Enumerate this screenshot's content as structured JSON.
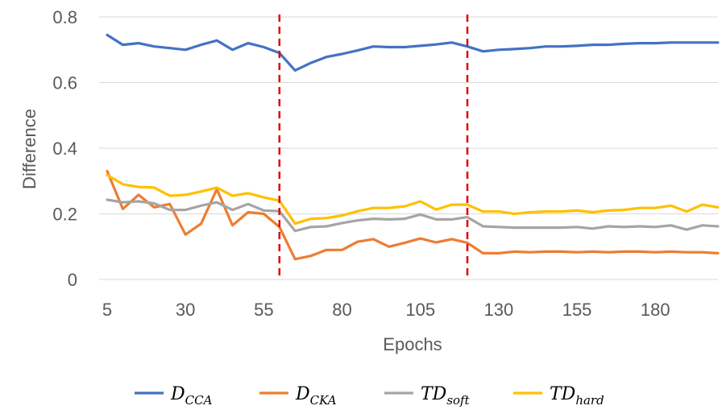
{
  "chart_data": {
    "type": "line",
    "title": "",
    "xlabel": "Epochs",
    "ylabel": "Difference",
    "ylim": [
      0,
      0.8
    ],
    "yticks": [
      {
        "value": 0,
        "label": "0"
      },
      {
        "value": 0.2,
        "label": "0.2"
      },
      {
        "value": 0.4,
        "label": "0.4"
      },
      {
        "value": 0.6,
        "label": "0.6"
      },
      {
        "value": 0.8,
        "label": "0.8"
      }
    ],
    "xticks": [
      {
        "value": 5,
        "label": "5"
      },
      {
        "value": 30,
        "label": "30"
      },
      {
        "value": 55,
        "label": "55"
      },
      {
        "value": 80,
        "label": "80"
      },
      {
        "value": 105,
        "label": "105"
      },
      {
        "value": 130,
        "label": "130"
      },
      {
        "value": 155,
        "label": "155"
      },
      {
        "value": 180,
        "label": "180"
      }
    ],
    "xrange": [
      5,
      200
    ],
    "grid": "horizontal",
    "legend_position": "bottom",
    "vlines": [
      {
        "x": 60,
        "color": "#e00000",
        "style": "dashed"
      },
      {
        "x": 120,
        "color": "#e00000",
        "style": "dashed"
      }
    ],
    "x": [
      5,
      10,
      15,
      20,
      25,
      30,
      35,
      40,
      45,
      50,
      55,
      60,
      65,
      70,
      75,
      80,
      85,
      90,
      95,
      100,
      105,
      110,
      115,
      120,
      125,
      130,
      135,
      140,
      145,
      150,
      155,
      160,
      165,
      170,
      175,
      180,
      185,
      190,
      195,
      200
    ],
    "series": [
      {
        "name": "D_CCA",
        "label_main": "D",
        "label_sub": "CCA",
        "color": "#4472C4",
        "values": [
          0.745,
          0.715,
          0.72,
          0.71,
          0.705,
          0.7,
          0.715,
          0.728,
          0.7,
          0.72,
          0.708,
          0.69,
          0.637,
          0.66,
          0.678,
          0.687,
          0.698,
          0.71,
          0.708,
          0.708,
          0.712,
          0.716,
          0.722,
          0.71,
          0.695,
          0.7,
          0.702,
          0.705,
          0.71,
          0.71,
          0.712,
          0.715,
          0.715,
          0.718,
          0.72,
          0.72,
          0.722,
          0.722,
          0.722,
          0.722
        ]
      },
      {
        "name": "D_CKA",
        "label_main": "D",
        "label_sub": "CKA",
        "color": "#ED7D31",
        "values": [
          0.33,
          0.215,
          0.258,
          0.22,
          0.23,
          0.137,
          0.17,
          0.275,
          0.165,
          0.205,
          0.2,
          0.16,
          0.062,
          0.072,
          0.09,
          0.09,
          0.115,
          0.123,
          0.1,
          0.112,
          0.125,
          0.113,
          0.123,
          0.112,
          0.08,
          0.08,
          0.085,
          0.083,
          0.085,
          0.085,
          0.083,
          0.085,
          0.083,
          0.085,
          0.085,
          0.083,
          0.085,
          0.083,
          0.083,
          0.08
        ]
      },
      {
        "name": "TD_soft",
        "label_main": "TD",
        "label_sub": "soft",
        "color": "#A5A5A5",
        "values": [
          0.243,
          0.235,
          0.238,
          0.232,
          0.212,
          0.212,
          0.225,
          0.235,
          0.212,
          0.23,
          0.21,
          0.208,
          0.148,
          0.16,
          0.162,
          0.172,
          0.18,
          0.185,
          0.183,
          0.185,
          0.198,
          0.183,
          0.183,
          0.19,
          0.162,
          0.16,
          0.158,
          0.158,
          0.158,
          0.158,
          0.16,
          0.155,
          0.162,
          0.16,
          0.162,
          0.16,
          0.165,
          0.152,
          0.165,
          0.162
        ]
      },
      {
        "name": "TD_hard",
        "label_main": "TD",
        "label_sub": "hard",
        "color": "#FFC000",
        "values": [
          0.318,
          0.29,
          0.282,
          0.28,
          0.255,
          0.258,
          0.268,
          0.28,
          0.255,
          0.263,
          0.25,
          0.24,
          0.17,
          0.185,
          0.187,
          0.195,
          0.208,
          0.218,
          0.218,
          0.223,
          0.238,
          0.213,
          0.228,
          0.228,
          0.207,
          0.207,
          0.2,
          0.205,
          0.207,
          0.207,
          0.21,
          0.205,
          0.21,
          0.212,
          0.218,
          0.218,
          0.225,
          0.207,
          0.228,
          0.22
        ]
      }
    ]
  }
}
